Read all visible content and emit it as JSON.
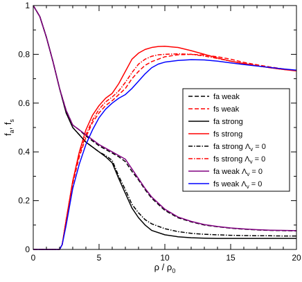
{
  "chart_data": {
    "type": "line",
    "title": "",
    "xlabel": {
      "main": "ρ / ρ",
      "sub": "0"
    },
    "ylabel": {
      "f1": "f",
      "sub1": "a",
      "sep": ", ",
      "f2": "f",
      "sub2": "s"
    },
    "xlim": [
      0,
      20
    ],
    "ylim": [
      0,
      1
    ],
    "xticks": [
      0,
      5,
      10,
      15,
      20
    ],
    "yticks": [
      0,
      0.2,
      0.4,
      0.6,
      0.8,
      1
    ],
    "ytick_labels": [
      "0",
      "0.2",
      "0.4",
      "0.6",
      "0.8",
      "1"
    ],
    "grid": false,
    "legend_position": "right-middle",
    "series": [
      {
        "name": "fa weak",
        "label": "fa weak",
        "label_sub": "",
        "label_tail": "",
        "color": "#000000",
        "dash": "6,3",
        "x": [
          0,
          0.5,
          1,
          1.5,
          2,
          2.5,
          3,
          3.5,
          4,
          4.5,
          5,
          5.5,
          6,
          6.5,
          7,
          7.5,
          8,
          8.5,
          9,
          10,
          11,
          12,
          13,
          14,
          15,
          16,
          17,
          18,
          19,
          20
        ],
        "y": [
          1,
          0.955,
          0.87,
          0.77,
          0.66,
          0.57,
          0.51,
          0.49,
          0.465,
          0.445,
          0.425,
          0.41,
          0.395,
          0.38,
          0.36,
          0.32,
          0.285,
          0.245,
          0.21,
          0.16,
          0.13,
          0.113,
          0.1,
          0.093,
          0.087,
          0.083,
          0.08,
          0.078,
          0.077,
          0.076
        ]
      },
      {
        "name": "fs weak",
        "label": "fs weak",
        "label_sub": "",
        "label_tail": "",
        "color": "#ff0000",
        "dash": "6,3",
        "x": [
          0,
          1,
          2,
          2.2,
          2.5,
          3,
          3.5,
          4,
          4.5,
          5,
          5.5,
          6,
          6.5,
          7,
          7.5,
          8,
          8.5,
          9,
          10,
          11,
          12,
          13,
          14,
          15,
          16,
          17,
          18,
          19,
          20
        ],
        "y": [
          0,
          0,
          0,
          0.02,
          0.12,
          0.27,
          0.38,
          0.46,
          0.52,
          0.56,
          0.59,
          0.61,
          0.635,
          0.66,
          0.7,
          0.73,
          0.755,
          0.77,
          0.79,
          0.798,
          0.8,
          0.797,
          0.79,
          0.78,
          0.767,
          0.757,
          0.748,
          0.74,
          0.733
        ]
      },
      {
        "name": "fa strong",
        "label": "fa strong",
        "label_sub": "",
        "label_tail": "",
        "color": "#000000",
        "dash": "",
        "x": [
          0,
          0.5,
          1,
          1.5,
          2,
          2.5,
          3,
          3.5,
          4,
          4.5,
          5,
          5.5,
          6,
          6.5,
          7,
          7.5,
          8,
          8.5,
          9,
          10,
          11,
          12,
          13,
          14,
          15,
          16,
          17,
          18,
          19,
          20
        ],
        "y": [
          1,
          0.955,
          0.87,
          0.77,
          0.66,
          0.56,
          0.5,
          0.47,
          0.44,
          0.42,
          0.4,
          0.38,
          0.355,
          0.29,
          0.23,
          0.17,
          0.13,
          0.1,
          0.078,
          0.06,
          0.052,
          0.048,
          0.046,
          0.045,
          0.045,
          0.045,
          0.045,
          0.045,
          0.045,
          0.045
        ]
      },
      {
        "name": "fs strong",
        "label": "fs strong",
        "label_sub": "",
        "label_tail": "",
        "color": "#ff0000",
        "dash": "",
        "x": [
          0,
          1,
          2,
          2.2,
          2.5,
          3,
          3.5,
          4,
          4.5,
          5,
          5.5,
          6,
          6.5,
          7,
          7.5,
          8,
          8.5,
          9,
          9.5,
          10,
          11,
          12,
          13,
          14,
          15,
          16,
          17,
          18,
          19,
          20
        ],
        "y": [
          0,
          0,
          0,
          0.02,
          0.12,
          0.28,
          0.4,
          0.49,
          0.55,
          0.59,
          0.62,
          0.64,
          0.68,
          0.73,
          0.78,
          0.805,
          0.82,
          0.828,
          0.832,
          0.833,
          0.828,
          0.815,
          0.8,
          0.785,
          0.772,
          0.762,
          0.753,
          0.745,
          0.738,
          0.732
        ]
      },
      {
        "name": "fa strong Λv = 0",
        "label": "fa strong Λ",
        "label_sub": "v",
        "label_tail": " = 0",
        "color": "#000000",
        "dash": "6,2,1.5,2",
        "x": [
          0,
          0.5,
          1,
          1.5,
          2,
          2.5,
          3,
          3.5,
          4,
          4.5,
          5,
          5.5,
          6,
          6.5,
          7,
          7.5,
          8,
          8.5,
          9,
          10,
          11,
          12,
          13,
          14,
          15,
          16,
          17,
          18,
          19,
          20
        ],
        "y": [
          1,
          0.955,
          0.87,
          0.77,
          0.66,
          0.56,
          0.5,
          0.47,
          0.44,
          0.42,
          0.4,
          0.385,
          0.365,
          0.3,
          0.245,
          0.185,
          0.15,
          0.122,
          0.105,
          0.085,
          0.073,
          0.066,
          0.062,
          0.06,
          0.058,
          0.057,
          0.056,
          0.056,
          0.055,
          0.055
        ]
      },
      {
        "name": "fs strong Λv = 0",
        "label": "fs strong Λ",
        "label_sub": "v",
        "label_tail": " = 0",
        "color": "#ff0000",
        "dash": "6,2,1.5,2",
        "x": [
          0,
          1,
          2,
          2.2,
          2.5,
          3,
          3.5,
          4,
          4.5,
          5,
          5.5,
          6,
          6.5,
          7,
          7.5,
          8,
          8.5,
          9,
          9.5,
          10,
          11,
          12,
          13,
          14,
          15,
          16,
          17,
          18,
          19,
          20
        ],
        "y": [
          0,
          0,
          0,
          0.02,
          0.12,
          0.28,
          0.39,
          0.47,
          0.53,
          0.575,
          0.605,
          0.625,
          0.65,
          0.685,
          0.725,
          0.76,
          0.78,
          0.792,
          0.798,
          0.8,
          0.802,
          0.8,
          0.793,
          0.783,
          0.772,
          0.762,
          0.753,
          0.745,
          0.738,
          0.733
        ]
      },
      {
        "name": "fa weak Λv = 0",
        "label": "fa weak Λ",
        "label_sub": "v",
        "label_tail": " = 0",
        "color": "#800080",
        "dash": "",
        "x": [
          0,
          0.5,
          1,
          1.5,
          2,
          2.5,
          3,
          3.5,
          4,
          4.5,
          5,
          5.5,
          6,
          6.5,
          7,
          7.5,
          8,
          8.5,
          9,
          10,
          11,
          12,
          13,
          14,
          15,
          16,
          17,
          18,
          19,
          20
        ],
        "y": [
          1,
          0.955,
          0.87,
          0.77,
          0.66,
          0.57,
          0.51,
          0.49,
          0.47,
          0.45,
          0.43,
          0.415,
          0.4,
          0.385,
          0.37,
          0.33,
          0.29,
          0.25,
          0.215,
          0.165,
          0.133,
          0.115,
          0.102,
          0.094,
          0.088,
          0.084,
          0.081,
          0.079,
          0.078,
          0.077
        ]
      },
      {
        "name": "fs weak Λv = 0",
        "label": "fs weak Λ",
        "label_sub": "v",
        "label_tail": " = 0",
        "color": "#0000ff",
        "dash": "",
        "x": [
          0,
          1,
          2,
          2.2,
          2.5,
          3,
          3.5,
          4,
          4.5,
          5,
          5.5,
          6,
          6.5,
          7,
          7.5,
          8,
          8.5,
          9,
          9.5,
          10,
          11,
          12,
          13,
          14,
          15,
          16,
          17,
          18,
          19,
          20
        ],
        "y": [
          0,
          0,
          0,
          0.02,
          0.1,
          0.25,
          0.35,
          0.43,
          0.49,
          0.54,
          0.575,
          0.6,
          0.62,
          0.635,
          0.66,
          0.69,
          0.72,
          0.745,
          0.76,
          0.768,
          0.775,
          0.778,
          0.777,
          0.772,
          0.765,
          0.758,
          0.752,
          0.746,
          0.74,
          0.735
        ]
      }
    ]
  }
}
